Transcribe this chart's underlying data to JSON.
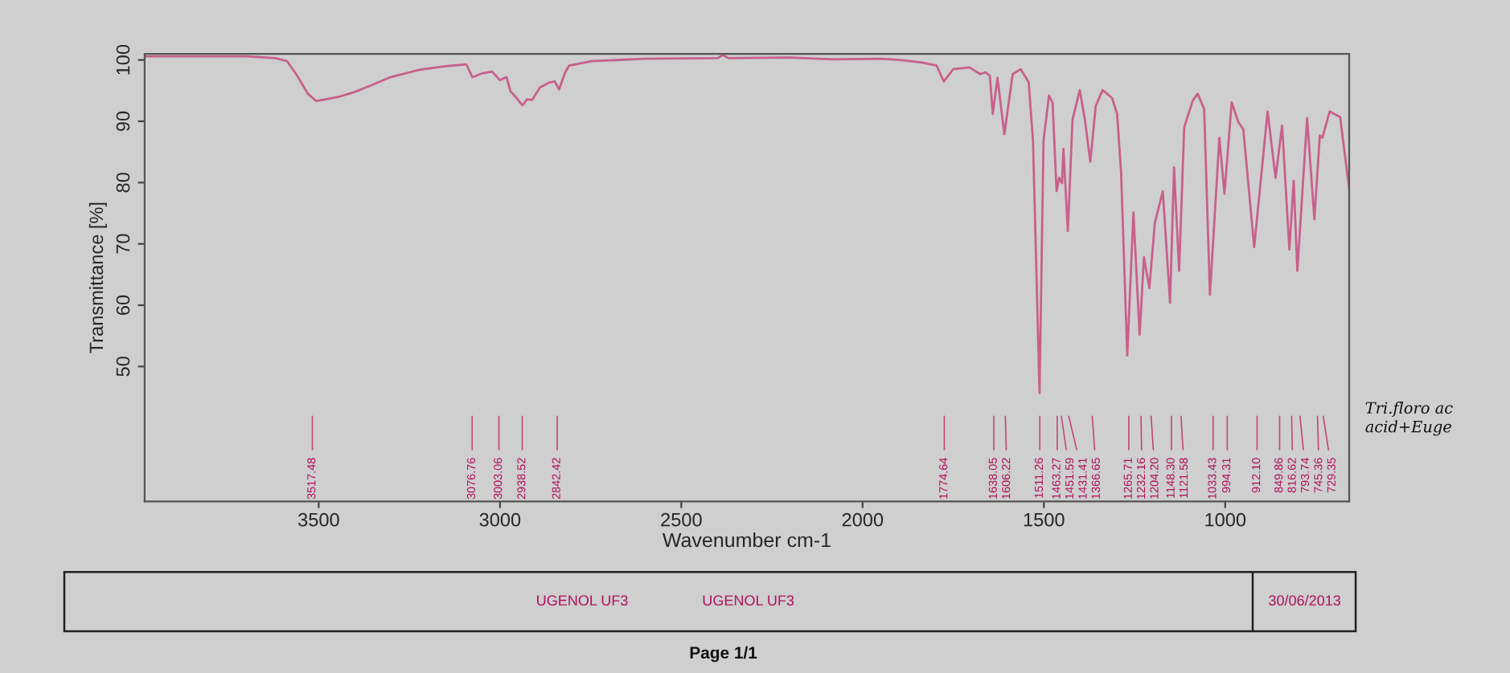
{
  "chart_data": {
    "type": "line",
    "xlabel": "Wavenumber cm-1",
    "ylabel": "Transmittance [%]",
    "x": [
      3980,
      3700,
      3620,
      3587,
      3560,
      3530,
      3507,
      3480,
      3444,
      3400,
      3350,
      3302,
      3222,
      3150,
      3093,
      3076,
      3049,
      3022,
      3000,
      2982,
      2971,
      2950,
      2938,
      2925,
      2911,
      2890,
      2865,
      2849,
      2837,
      2820,
      2809,
      2747,
      2600,
      2400,
      2385,
      2370,
      2200,
      2080,
      1950,
      1898,
      1840,
      1796,
      1776,
      1750,
      1705,
      1676,
      1661,
      1649,
      1641,
      1628,
      1609,
      1586,
      1564,
      1542,
      1530,
      1512,
      1501,
      1486,
      1476,
      1465,
      1458,
      1450,
      1446,
      1434,
      1421,
      1401,
      1387,
      1372,
      1357,
      1338,
      1312,
      1298,
      1287,
      1270,
      1253,
      1236,
      1224,
      1209,
      1194,
      1172,
      1152,
      1141,
      1127,
      1113,
      1090,
      1076,
      1058,
      1042,
      1016,
      1002,
      982,
      964,
      950,
      920,
      883,
      861,
      843,
      823,
      811,
      801,
      774,
      754,
      739,
      732,
      712,
      683,
      658
    ],
    "series": [
      {
        "color": "#c8608a",
        "values": [
          100.6,
          100.6,
          100.3,
          99.8,
          97.5,
          94.5,
          93.3,
          93.6,
          94.0,
          94.8,
          96.0,
          97.2,
          98.4,
          99.0,
          99.3,
          97.2,
          97.8,
          98.1,
          96.7,
          97.2,
          94.9,
          93.5,
          92.6,
          93.6,
          93.5,
          95.5,
          96.3,
          96.5,
          95.2,
          98.0,
          99.1,
          99.8,
          100.2,
          100.3,
          100.8,
          100.3,
          100.4,
          100.1,
          100.2,
          100.0,
          99.6,
          99.1,
          96.5,
          98.5,
          98.8,
          97.7,
          98.0,
          97.4,
          91.2,
          97.1,
          87.9,
          97.7,
          98.5,
          96.4,
          86.8,
          45.7,
          86.8,
          94.2,
          93.0,
          78.6,
          80.8,
          79.9,
          85.5,
          72.1,
          90.3,
          95.1,
          90.3,
          83.4,
          92.5,
          95.1,
          93.8,
          91.2,
          81.6,
          51.8,
          75.1,
          55.2,
          67.8,
          62.8,
          73.4,
          78.6,
          60.4,
          82.5,
          65.6,
          89.0,
          93.3,
          94.5,
          92.0,
          61.7,
          87.3,
          78.2,
          93.1,
          89.9,
          88.7,
          69.5,
          91.6,
          80.8,
          89.3,
          69.1,
          80.3,
          65.6,
          90.5,
          74.0,
          87.7,
          87.3,
          91.6,
          90.7,
          79.0
        ]
      }
    ],
    "xlim": [
      3980,
      658
    ],
    "ylim": [
      28,
      101
    ],
    "xticks": [
      3500,
      3000,
      2500,
      2000,
      1500,
      1000
    ],
    "yticks": [
      50,
      60,
      70,
      80,
      90,
      100
    ],
    "marker": "none",
    "line_style": "solid",
    "annotations": [
      {
        "text": "3517.48",
        "x": 3517.48
      },
      {
        "text": "3076.76",
        "x": 3076.76
      },
      {
        "text": "3003.06",
        "x": 3003.06
      },
      {
        "text": "2938.52",
        "x": 2938.52
      },
      {
        "text": "2842.42",
        "x": 2842.42
      },
      {
        "text": "1774.64",
        "x": 1774.64
      },
      {
        "text": "1638.05",
        "x": 1638.05
      },
      {
        "text": "1606.22",
        "x": 1606.22
      },
      {
        "text": "1511.26",
        "x": 1511.26
      },
      {
        "text": "1463.27",
        "x": 1463.27
      },
      {
        "text": "1451.59",
        "x": 1451.59
      },
      {
        "text": "1431.41",
        "x": 1431.41
      },
      {
        "text": "1366.65",
        "x": 1366.65
      },
      {
        "text": "1265.71",
        "x": 1265.71
      },
      {
        "text": "1232.16",
        "x": 1232.16
      },
      {
        "text": "1204.20",
        "x": 1204.2
      },
      {
        "text": "1148.30",
        "x": 1148.3
      },
      {
        "text": "1121.58",
        "x": 1121.58
      },
      {
        "text": "1033.43",
        "x": 1033.43
      },
      {
        "text": "994.31",
        "x": 994.31
      },
      {
        "text": "912.10",
        "x": 912.1
      },
      {
        "text": "849.86",
        "x": 849.86
      },
      {
        "text": "816.62",
        "x": 816.62
      },
      {
        "text": "793.74",
        "x": 793.74
      },
      {
        "text": "745.36",
        "x": 745.36
      },
      {
        "text": "729.35",
        "x": 729.35
      },
      "UGENOL UF3",
      "UGENOL UF3",
      "30/06/2013",
      "Page 1/1",
      "Tri.floro ac",
      "acid+Euge"
    ]
  }
}
